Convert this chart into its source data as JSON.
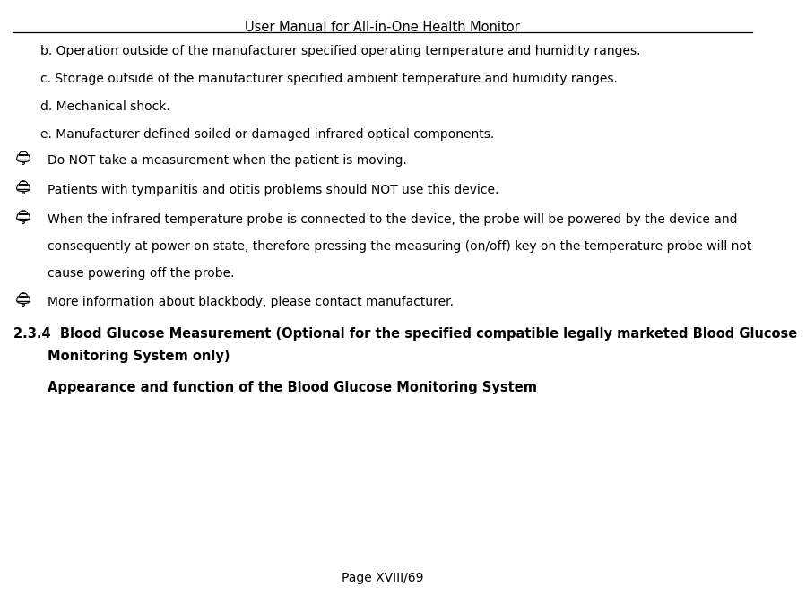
{
  "title": "User Manual for All-in-One Health Monitor",
  "page_footer": "Page XVIII/69",
  "background_color": "#ffffff",
  "text_color": "#000000",
  "title_fontsize": 10.5,
  "body_fontsize": 10.0,
  "bold_fontsize": 10.5,
  "lines_abcde": [
    "b. Operation outside of the manufacturer specified operating temperature and humidity ranges.",
    "c. Storage outside of the manufacturer specified ambient temperature and humidity ranges.",
    "d. Mechanical shock.",
    "e. Manufacturer defined soiled or damaged infrared optical components."
  ],
  "bell_item1": "Do NOT take a measurement when the patient is moving.",
  "bell_item2": "Patients with tympanitis and otitis problems should NOT use this device.",
  "bell_item3_l1": "When the infrared temperature probe is connected to the device, the probe will be powered by the device and",
  "bell_item3_l2": "consequently at power-on state, therefore pressing the measuring (on/off) key on the temperature probe will not",
  "bell_item3_l3": "cause powering off the probe.",
  "bell_item4": "More information about blackbody, please contact manufacturer.",
  "section_l1": "2.3.4  Blood Glucose Measurement (Optional for the specified compatible legally marketed Blood Glucose",
  "section_l2": "Monitoring System only)",
  "subheading": "Appearance and function of the Blood Glucose Monitoring System"
}
